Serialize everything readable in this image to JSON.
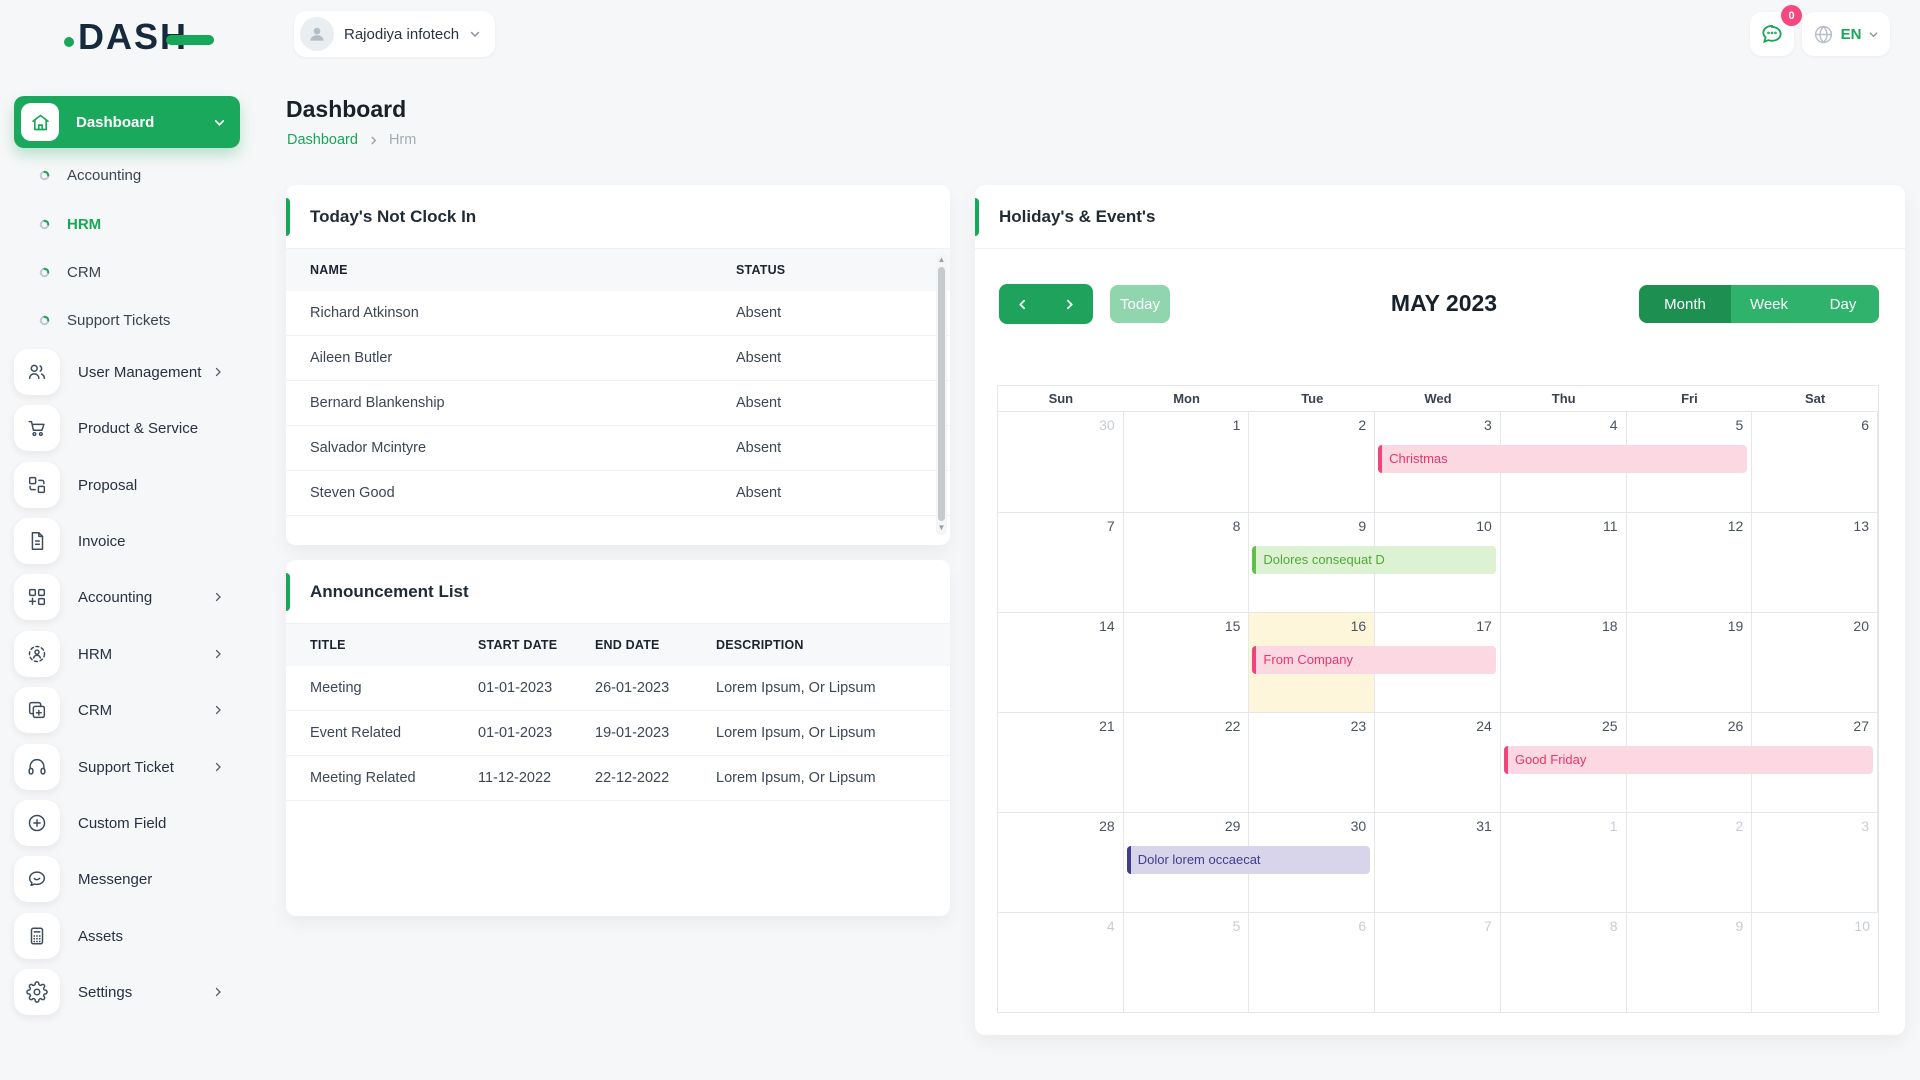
{
  "header": {
    "logo": "DASH",
    "company": {
      "name": "Rajodiya infotech"
    },
    "chat": {
      "badge": "0"
    },
    "language": {
      "code": "EN"
    }
  },
  "sidebar": {
    "dashboard": {
      "label": "Dashboard"
    },
    "submenu": [
      {
        "label": "Accounting",
        "active": false
      },
      {
        "label": "HRM",
        "active": true
      },
      {
        "label": "CRM",
        "active": false
      },
      {
        "label": "Support Tickets",
        "active": false
      }
    ],
    "menu": [
      {
        "label": "User Management",
        "icon": "users-icon",
        "expandable": true
      },
      {
        "label": "Product & Service",
        "icon": "cart-icon",
        "expandable": false
      },
      {
        "label": "Proposal",
        "icon": "proposal-icon",
        "expandable": false
      },
      {
        "label": "Invoice",
        "icon": "invoice-icon",
        "expandable": false
      },
      {
        "label": "Accounting",
        "icon": "accounting-icon",
        "expandable": true
      },
      {
        "label": "HRM",
        "icon": "hrm-icon",
        "expandable": true
      },
      {
        "label": "CRM",
        "icon": "crm-icon",
        "expandable": true
      },
      {
        "label": "Support Ticket",
        "icon": "support-icon",
        "expandable": true
      },
      {
        "label": "Custom Field",
        "icon": "custom-field-icon",
        "expandable": false
      },
      {
        "label": "Messenger",
        "icon": "messenger-icon",
        "expandable": false
      },
      {
        "label": "Assets",
        "icon": "assets-icon",
        "expandable": false
      },
      {
        "label": "Settings",
        "icon": "settings-icon",
        "expandable": true
      }
    ]
  },
  "page": {
    "title": "Dashboard",
    "breadcrumb": {
      "root": "Dashboard",
      "current": "Hrm"
    }
  },
  "clockin": {
    "title": "Today's Not Clock In",
    "columns": [
      "NAME",
      "STATUS"
    ],
    "rows": [
      [
        "Richard Atkinson",
        "Absent"
      ],
      [
        "Aileen Butler",
        "Absent"
      ],
      [
        "Bernard Blankenship",
        "Absent"
      ],
      [
        "Salvador Mcintyre",
        "Absent"
      ],
      [
        "Steven Good",
        "Absent"
      ]
    ]
  },
  "announcements": {
    "title": "Announcement List",
    "columns": [
      "TITLE",
      "START DATE",
      "END DATE",
      "DESCRIPTION"
    ],
    "rows": [
      [
        "Meeting",
        "01-01-2023",
        "26-01-2023",
        "Lorem Ipsum, Or Lipsum"
      ],
      [
        "Event Related",
        "01-01-2023",
        "19-01-2023",
        "Lorem Ipsum, Or Lipsum"
      ],
      [
        "Meeting Related",
        "11-12-2022",
        "22-12-2022",
        "Lorem Ipsum, Or Lipsum"
      ]
    ]
  },
  "calendar": {
    "title": "Holiday's & Event's",
    "toolbar": {
      "today": "Today",
      "month_title": "MAY 2023",
      "views": [
        {
          "label": "Month",
          "active": true
        },
        {
          "label": "Week",
          "active": false
        },
        {
          "label": "Day",
          "active": false
        }
      ]
    },
    "day_headers": [
      "Sun",
      "Mon",
      "Tue",
      "Wed",
      "Thu",
      "Fri",
      "Sat"
    ],
    "weeks": [
      [
        {
          "d": "30",
          "other": true
        },
        {
          "d": "1"
        },
        {
          "d": "2"
        },
        {
          "d": "3"
        },
        {
          "d": "4"
        },
        {
          "d": "5"
        },
        {
          "d": "6"
        }
      ],
      [
        {
          "d": "7"
        },
        {
          "d": "8"
        },
        {
          "d": "9"
        },
        {
          "d": "10"
        },
        {
          "d": "11"
        },
        {
          "d": "12"
        },
        {
          "d": "13"
        }
      ],
      [
        {
          "d": "14"
        },
        {
          "d": "15"
        },
        {
          "d": "16",
          "today": true
        },
        {
          "d": "17"
        },
        {
          "d": "18"
        },
        {
          "d": "19"
        },
        {
          "d": "20"
        }
      ],
      [
        {
          "d": "21"
        },
        {
          "d": "22"
        },
        {
          "d": "23"
        },
        {
          "d": "24"
        },
        {
          "d": "25"
        },
        {
          "d": "26"
        },
        {
          "d": "27"
        }
      ],
      [
        {
          "d": "28"
        },
        {
          "d": "29"
        },
        {
          "d": "30"
        },
        {
          "d": "31"
        },
        {
          "d": "1",
          "other": true
        },
        {
          "d": "2",
          "other": true
        },
        {
          "d": "3",
          "other": true
        }
      ],
      [
        {
          "d": "4",
          "other": true
        },
        {
          "d": "5",
          "other": true
        },
        {
          "d": "6",
          "other": true
        },
        {
          "d": "7",
          "other": true
        },
        {
          "d": "8",
          "other": true
        },
        {
          "d": "9",
          "other": true
        },
        {
          "d": "10",
          "other": true
        }
      ]
    ],
    "events": [
      {
        "label": "Christmas",
        "week": 0,
        "col_start": 3,
        "col_end": 5,
        "color": "pink"
      },
      {
        "label": "Dolores consequat D",
        "week": 1,
        "col_start": 2,
        "col_end": 3,
        "color": "green"
      },
      {
        "label": "From Company",
        "week": 2,
        "col_start": 2,
        "col_end": 3,
        "color": "pink"
      },
      {
        "label": "Good Friday",
        "week": 3,
        "col_start": 4,
        "col_end": 6,
        "color": "pink"
      },
      {
        "label": "Dolor lorem occaecat",
        "week": 4,
        "col_start": 1,
        "col_end": 2,
        "color": "purple"
      }
    ],
    "event_colors": {
      "pink": {
        "bg": "#fcd9e2",
        "border": "#f0447c",
        "text": "#e8346b"
      },
      "green": {
        "bg": "#ddf2d3",
        "border": "#5fc04a",
        "text": "#53a83a"
      },
      "purple": {
        "bg": "#d8d5eb",
        "border": "#423d8f",
        "text": "#3f3b90"
      }
    }
  },
  "colors": {
    "primary_green": "#17a758",
    "badge_pink": "#f8477f",
    "today_cell_bg": "#fdf6db",
    "view_active_green": "#1d8f50",
    "view_inactive_green": "#2fb26b",
    "today_button_green": "#90d5ae"
  }
}
